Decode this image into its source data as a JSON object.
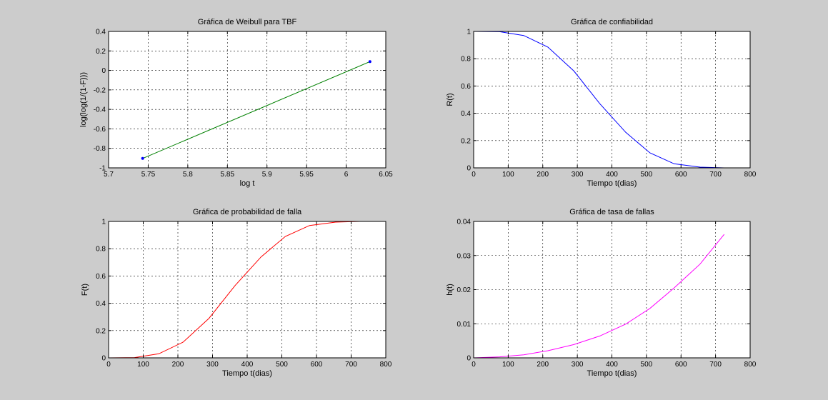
{
  "figure": {
    "background": "#cccccc"
  },
  "chart_data": [
    {
      "id": "weibull",
      "type": "line",
      "title": "Gráfica de Weibull para TBF",
      "xlabel": "log t",
      "ylabel": "log(log(1/(1-F)))",
      "xlim": [
        5.7,
        6.05
      ],
      "ylim": [
        -1,
        0.4
      ],
      "xticks": [
        5.7,
        5.75,
        5.8,
        5.85,
        5.9,
        5.95,
        6,
        6.05
      ],
      "xtick_labels": [
        "5.7",
        "5.75",
        "5.8",
        "5.85",
        "5.9",
        "5.95",
        "6",
        "6.05"
      ],
      "yticks": [
        -1,
        -0.8,
        -0.6,
        -0.4,
        -0.2,
        0,
        0.2,
        0.4
      ],
      "ytick_labels": [
        "-1",
        "-0.8",
        "-0.6",
        "-0.4",
        "-0.2",
        "0",
        "0.2",
        "0.4"
      ],
      "grid": true,
      "series": [
        {
          "x": [
            5.743,
            6.03
          ],
          "y": [
            -0.903,
            0.09
          ],
          "color": "#008000",
          "marker": "none"
        },
        {
          "x": [
            5.743,
            6.03
          ],
          "y": [
            -0.903,
            0.09
          ],
          "color": "#0000ff",
          "marker": "dot"
        }
      ]
    },
    {
      "id": "reliability",
      "type": "line",
      "title": "Gráfica de confiabilidad",
      "xlabel": "Tiempo t(dias)",
      "ylabel": "R(t)",
      "xlim": [
        0,
        800
      ],
      "ylim": [
        0,
        1
      ],
      "xticks": [
        0,
        100,
        200,
        300,
        400,
        500,
        600,
        700,
        800
      ],
      "xtick_labels": [
        "0",
        "100",
        "200",
        "300",
        "400",
        "500",
        "600",
        "700",
        "800"
      ],
      "yticks": [
        0,
        0.2,
        0.4,
        0.6,
        0.8,
        1
      ],
      "ytick_labels": [
        "0",
        "0.2",
        "0.4",
        "0.6",
        "0.8",
        "1"
      ],
      "grid": true,
      "series": [
        {
          "x": [
            0,
            75,
            145,
            215,
            290,
            365,
            440,
            510,
            580,
            655,
            725
          ],
          "y": [
            1,
            0.998,
            0.97,
            0.885,
            0.71,
            0.47,
            0.26,
            0.11,
            0.03,
            0.005,
            0.0
          ],
          "color": "#0000ff"
        }
      ]
    },
    {
      "id": "failure_prob",
      "type": "line",
      "title": "Gráfica de probabilidad de falla",
      "xlabel": "Tiempo t(dias)",
      "ylabel": "F(t)",
      "xlim": [
        0,
        800
      ],
      "ylim": [
        0,
        1
      ],
      "xticks": [
        0,
        100,
        200,
        300,
        400,
        500,
        600,
        700,
        800
      ],
      "xtick_labels": [
        "0",
        "100",
        "200",
        "300",
        "400",
        "500",
        "600",
        "700",
        "800"
      ],
      "yticks": [
        0,
        0.2,
        0.4,
        0.6,
        0.8,
        1
      ],
      "ytick_labels": [
        "0",
        "0.2",
        "0.4",
        "0.6",
        "0.8",
        "1"
      ],
      "grid": true,
      "series": [
        {
          "x": [
            0,
            75,
            145,
            215,
            290,
            365,
            440,
            510,
            580,
            655,
            725
          ],
          "y": [
            0,
            0.002,
            0.03,
            0.115,
            0.29,
            0.53,
            0.74,
            0.89,
            0.97,
            0.995,
            1.0
          ],
          "color": "#ff0000"
        }
      ]
    },
    {
      "id": "failure_rate",
      "type": "line",
      "title": "Gráfica de tasa de fallas",
      "xlabel": "Tiempo t(dias)",
      "ylabel": "h(t)",
      "xlim": [
        0,
        800
      ],
      "ylim": [
        0,
        0.04
      ],
      "xticks": [
        0,
        100,
        200,
        300,
        400,
        500,
        600,
        700,
        800
      ],
      "xtick_labels": [
        "0",
        "100",
        "200",
        "300",
        "400",
        "500",
        "600",
        "700",
        "800"
      ],
      "yticks": [
        0,
        0.01,
        0.02,
        0.03,
        0.04
      ],
      "ytick_labels": [
        "0",
        "0.01",
        "0.02",
        "0.03",
        "0.04"
      ],
      "grid": true,
      "series": [
        {
          "x": [
            0,
            75,
            145,
            215,
            290,
            365,
            440,
            510,
            580,
            655,
            725
          ],
          "y": [
            0,
            0.0003,
            0.0009,
            0.0021,
            0.0039,
            0.0064,
            0.0099,
            0.0145,
            0.0205,
            0.0275,
            0.0362
          ],
          "color": "#ff00ff"
        }
      ]
    }
  ]
}
